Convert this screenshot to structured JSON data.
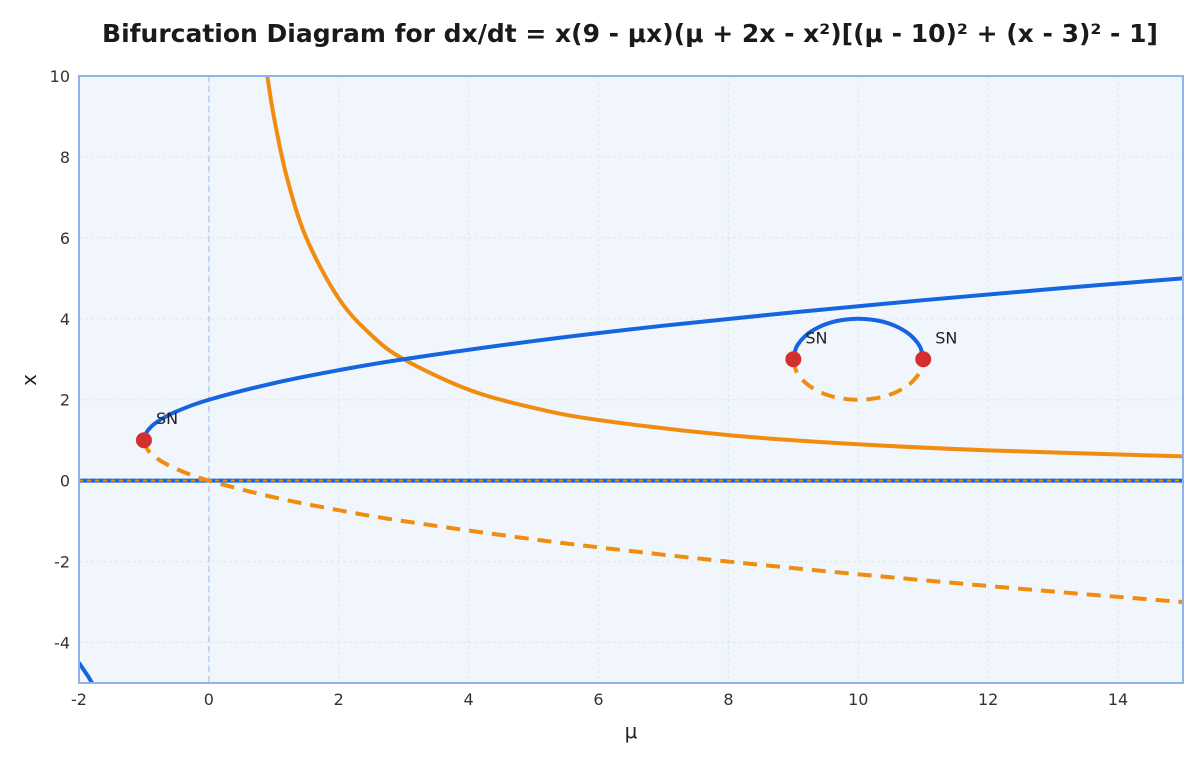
{
  "chart_data": {
    "type": "line",
    "title": "Bifurcation Diagram for dx/dt = x(9 - μx)(μ + 2x - x²)[(μ - 10)² + (x - 3)² - 1]",
    "xlabel": "μ",
    "ylabel": "x",
    "xlim": [
      -2,
      15
    ],
    "ylim": [
      -5,
      10
    ],
    "xticks": [
      -2,
      0,
      2,
      4,
      6,
      8,
      10,
      12,
      14
    ],
    "yticks": [
      -4,
      -2,
      0,
      2,
      4,
      6,
      8,
      10
    ],
    "tick_labels_x": [
      "-2",
      "0",
      "2",
      "4",
      "6",
      "8",
      "10",
      "12",
      "14"
    ],
    "tick_labels_y": [
      "-4",
      "-2",
      "0",
      "2",
      "4",
      "6",
      "8",
      "10"
    ],
    "grid": true,
    "vertical_reference_line": 0,
    "colors": {
      "stable": "#1565e0",
      "unstable": "#f28c0f",
      "fold_point": "#d32f2f",
      "plot_background": "#f0f6fc",
      "frame": "#8fb4ea"
    },
    "series": [
      {
        "branch": "x = 0",
        "style": "solid",
        "color": "#1565e0",
        "x": [
          -2,
          15
        ],
        "y": [
          0,
          0
        ]
      },
      {
        "branch": "x = 0 (overlay)",
        "style": "dashed",
        "color": "#f28c0f",
        "x": [
          -2,
          15
        ],
        "y": [
          0,
          0
        ]
      },
      {
        "branch": "x = 9/μ, μ < 0",
        "style": "solid",
        "color": "#1565e0",
        "x": [
          -2.0,
          -1.95,
          -1.9,
          -1.85,
          -1.8
        ],
        "y": [
          -4.5,
          -4.62,
          -4.74,
          -4.86,
          -5.0
        ]
      },
      {
        "branch": "x = 9/μ, μ > 0",
        "style": "solid",
        "color": "#f28c0f",
        "x": [
          0.9,
          1,
          1.2,
          1.5,
          2,
          2.5,
          3,
          4,
          5,
          6,
          8,
          10,
          12,
          15
        ],
        "y": [
          10,
          9,
          7.5,
          6,
          4.5,
          3.6,
          3,
          2.25,
          1.8,
          1.5,
          1.125,
          0.9,
          0.75,
          0.6
        ]
      },
      {
        "branch": "x = 1 + √(1 + μ)",
        "style": "solid",
        "color": "#1565e0",
        "x": [
          -1,
          -0.95,
          -0.8,
          -0.5,
          0,
          1,
          2,
          3,
          5,
          7,
          9,
          11,
          13,
          15
        ],
        "y": [
          1,
          1.22,
          1.45,
          1.71,
          2,
          2.41,
          2.73,
          3,
          3.45,
          3.83,
          4.16,
          4.46,
          4.74,
          5
        ]
      },
      {
        "branch": "x = 1 - √(1 + μ)",
        "style": "dashed",
        "color": "#f28c0f",
        "x": [
          -1,
          -0.95,
          -0.8,
          -0.5,
          0,
          1,
          2,
          3,
          5,
          7,
          9,
          11,
          13,
          15
        ],
        "y": [
          1,
          0.78,
          0.55,
          0.29,
          0,
          -0.41,
          -0.73,
          -1,
          -1.45,
          -1.83,
          -2.16,
          -2.46,
          -2.74,
          -3
        ]
      },
      {
        "branch": "isola (upper)",
        "style": "solid",
        "color": "#1565e0",
        "x": [
          9,
          9.05,
          9.2,
          9.4,
          9.6,
          9.8,
          10,
          10.2,
          10.4,
          10.6,
          10.8,
          10.95,
          11
        ],
        "y": [
          3,
          3.31,
          3.6,
          3.8,
          3.92,
          3.98,
          4,
          3.98,
          3.92,
          3.8,
          3.6,
          3.31,
          3
        ]
      },
      {
        "branch": "isola (lower)",
        "style": "dashed",
        "color": "#f28c0f",
        "x": [
          9,
          9.05,
          9.2,
          9.4,
          9.6,
          9.8,
          10,
          10.2,
          10.4,
          10.6,
          10.8,
          10.95,
          11
        ],
        "y": [
          3,
          2.69,
          2.4,
          2.2,
          2.08,
          2.02,
          2,
          2.02,
          2.08,
          2.2,
          2.4,
          2.69,
          3
        ]
      }
    ],
    "annotations": [
      {
        "text": "SN",
        "x": -1,
        "y": 1
      },
      {
        "text": "SN",
        "x": 9,
        "y": 3
      },
      {
        "text": "SN",
        "x": 11,
        "y": 3
      }
    ]
  }
}
